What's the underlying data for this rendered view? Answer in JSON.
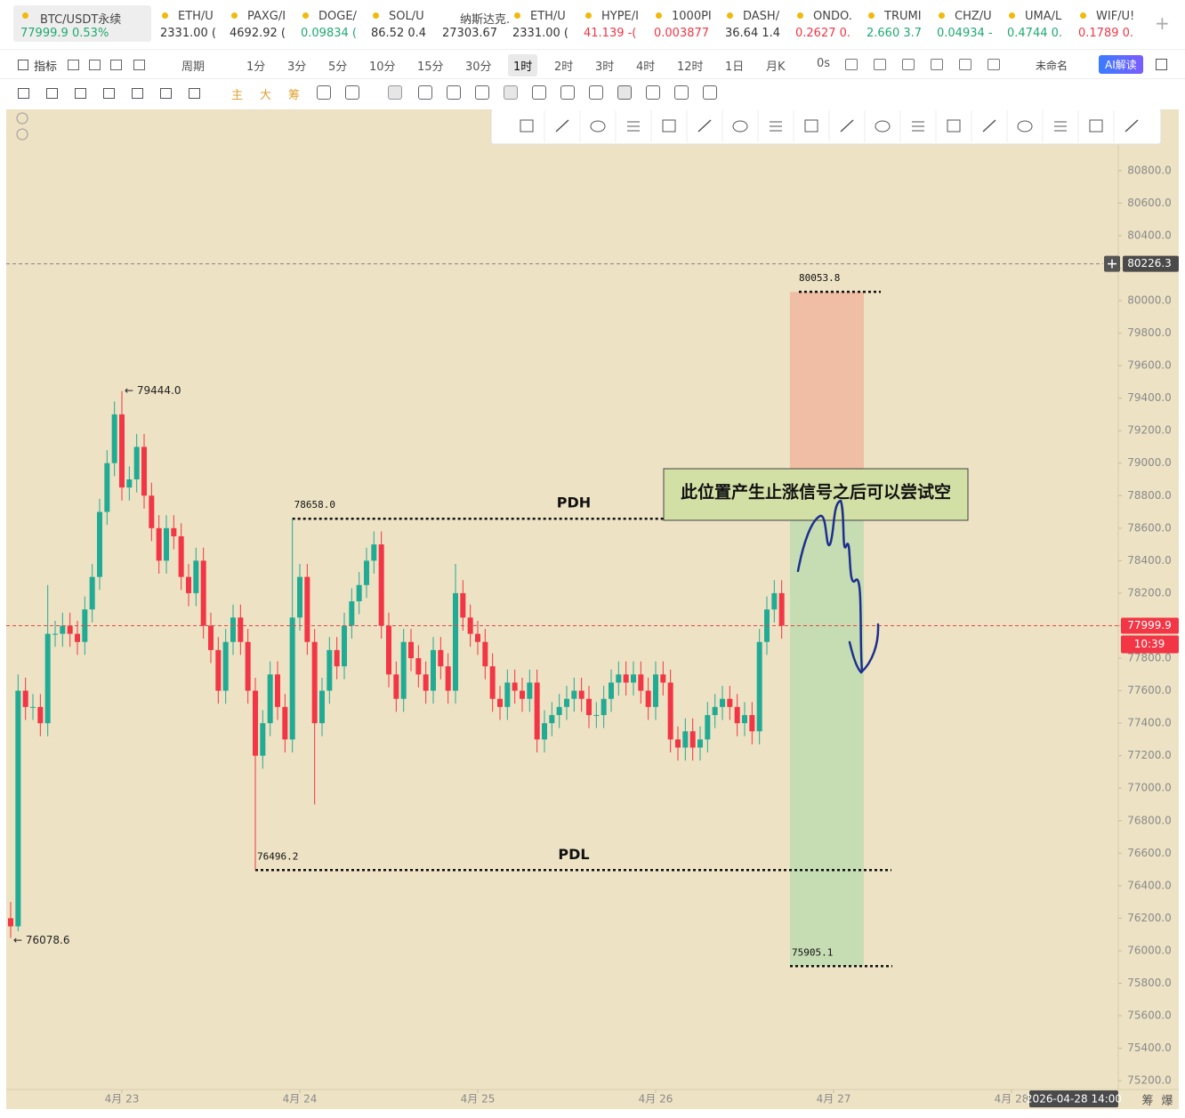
{
  "tickers": [
    {
      "symbol": "BTC/USDT永续",
      "price": "77999.9",
      "change": "0.53%",
      "color": "#1fa971"
    },
    {
      "symbol": "ETH/U",
      "quote": "2331.00 (",
      "color": "#333333"
    },
    {
      "symbol": "PAXG/I",
      "quote": "4692.92 (",
      "color": "#333333"
    },
    {
      "symbol": "DOGE/",
      "quote": "0.09834 (",
      "color": "#1fa971"
    },
    {
      "symbol": "SOL/U",
      "quote": "86.52 0.4",
      "color": "#333333"
    },
    {
      "symbol": "纳斯达克...",
      "quote": "27303.67",
      "color": "#333333"
    },
    {
      "symbol": "ETH/U",
      "quote": "2331.00 (",
      "color": "#333333"
    },
    {
      "symbol": "HYPE/I",
      "quote": "41.139 -(",
      "color": "#f23645"
    },
    {
      "symbol": "1000PI",
      "quote": "0.003877",
      "color": "#f23645"
    },
    {
      "symbol": "DASH/",
      "quote": "36.64 1.4",
      "color": "#333333"
    },
    {
      "symbol": "ONDO.",
      "quote": "0.2627 0.",
      "color": "#f23645"
    },
    {
      "symbol": "TRUMI",
      "quote": "2.660 3.7",
      "color": "#1fa971"
    },
    {
      "symbol": "CHZ/U",
      "quote": "0.04934 -",
      "color": "#1fa971"
    },
    {
      "symbol": "UMA/L",
      "quote": "0.4744 0.",
      "color": "#1fa971"
    },
    {
      "symbol": "WIF/U!",
      "quote": "0.1789 0.",
      "color": "#f23645"
    }
  ],
  "toolbar": {
    "indicators": "指标",
    "period": "周期",
    "intervals": [
      "1分",
      "3分",
      "5分",
      "10分",
      "15分",
      "30分",
      "1时",
      "2时",
      "3时",
      "4时",
      "12时",
      "1日",
      "月K"
    ],
    "timer": "0s",
    "layout_name": "未命名",
    "ai_button": "AI解读"
  },
  "drawing_bar": {
    "main": "主",
    "big": "大",
    "chips": "筹"
  },
  "chart_data": {
    "type": "candlestick",
    "open": [
      76200,
      76150,
      77600,
      77500,
      77500,
      77400,
      77950,
      77950,
      78000,
      77950,
      77900,
      78100,
      78300,
      78700,
      79000,
      79300,
      78850,
      78900,
      79100,
      78800,
      78600,
      78400,
      78600,
      78550,
      78300,
      78200,
      78400,
      78000,
      77850,
      77600,
      77900,
      78050,
      77900,
      77600,
      77200,
      77400,
      77700,
      77500,
      77300,
      78050,
      78300,
      77900,
      77400,
      77600,
      77850,
      77750,
      78000,
      78150,
      78250,
      78400,
      78500,
      78000,
      77700,
      77550,
      77900,
      77800,
      77700,
      77600,
      77850,
      77750,
      77600,
      78200,
      78050,
      77950,
      77900,
      77750,
      77550,
      77500,
      77650,
      77600,
      77550,
      77650,
      77300,
      77400,
      77450,
      77500,
      77550,
      77600,
      77550,
      77450,
      77450,
      77550,
      77650,
      77700,
      77650,
      77700,
      77600,
      77500,
      77700,
      77650,
      77300,
      77250,
      77350,
      77250,
      77300,
      77450,
      77500,
      77550,
      77500,
      77400,
      77450,
      77350,
      77900,
      78100,
      78200
    ],
    "high": [
      76300,
      77700,
      77680,
      77580,
      77580,
      78250,
      78030,
      78080,
      78080,
      78030,
      78180,
      78380,
      78780,
      79080,
      79380,
      79444.0,
      78980,
      79180,
      79180,
      78880,
      78680,
      78680,
      78680,
      78630,
      78380,
      78480,
      78480,
      78080,
      77930,
      77980,
      78130,
      78130,
      77980,
      77680,
      77480,
      77780,
      77780,
      77580,
      78658.0,
      78380,
      78380,
      77980,
      77680,
      77930,
      77930,
      78080,
      78230,
      78330,
      78480,
      78580,
      78580,
      78080,
      77780,
      77980,
      77980,
      77880,
      77780,
      77930,
      77930,
      77830,
      78380,
      78280,
      78130,
      78030,
      77980,
      77830,
      77630,
      77730,
      77730,
      77680,
      77730,
      77730,
      77480,
      77530,
      77580,
      77630,
      77680,
      77680,
      77630,
      77530,
      77630,
      77730,
      77780,
      77780,
      77780,
      77780,
      77680,
      77780,
      77780,
      77730,
      77380,
      77430,
      77430,
      77380,
      77530,
      77580,
      77630,
      77630,
      77580,
      77530,
      77530,
      77980,
      78180,
      78280,
      78280
    ],
    "low": [
      76078.6,
      76120,
      77420,
      77420,
      77320,
      77320,
      77870,
      77870,
      77870,
      77820,
      77820,
      78020,
      78220,
      78620,
      78920,
      78770,
      78770,
      78820,
      78720,
      78520,
      78320,
      78320,
      78470,
      78220,
      78120,
      78120,
      77920,
      77770,
      77520,
      77520,
      77820,
      77820,
      77520,
      76496.2,
      77120,
      77320,
      77420,
      77220,
      77220,
      77970,
      77820,
      76900,
      77320,
      77520,
      77670,
      77670,
      77920,
      78070,
      78170,
      78320,
      77920,
      77620,
      77470,
      77470,
      77720,
      77620,
      77520,
      77520,
      77670,
      77520,
      77520,
      77970,
      77870,
      77820,
      77670,
      77470,
      77420,
      77420,
      77520,
      77470,
      77470,
      77220,
      77220,
      77320,
      77370,
      77420,
      77470,
      77470,
      77370,
      77370,
      77370,
      77470,
      77570,
      77570,
      77570,
      77520,
      77420,
      77420,
      77570,
      77220,
      77170,
      77170,
      77170,
      77170,
      77220,
      77370,
      77420,
      77420,
      77320,
      77320,
      77270,
      77270,
      77820,
      78020,
      77920
    ],
    "close": [
      76150,
      77600,
      77500,
      77500,
      77400,
      77950,
      77950,
      78000,
      77950,
      77900,
      78100,
      78300,
      78700,
      79000,
      79300,
      78850,
      78900,
      79100,
      78800,
      78600,
      78400,
      78600,
      78550,
      78300,
      78200,
      78400,
      78000,
      77850,
      77600,
      77900,
      78050,
      77900,
      77600,
      77200,
      77400,
      77700,
      77500,
      77300,
      78050,
      78300,
      77900,
      77400,
      77600,
      77850,
      77750,
      78000,
      78150,
      78250,
      78400,
      78500,
      78000,
      77700,
      77550,
      77900,
      77800,
      77700,
      77600,
      77850,
      77750,
      77600,
      78200,
      78050,
      77950,
      77900,
      77750,
      77550,
      77500,
      77650,
      77600,
      77550,
      77650,
      77300,
      77400,
      77450,
      77500,
      77550,
      77600,
      77550,
      77450,
      77450,
      77550,
      77650,
      77700,
      77650,
      77700,
      77600,
      77500,
      77700,
      77650,
      77300,
      77250,
      77350,
      77250,
      77300,
      77450,
      77500,
      77550,
      77500,
      77400,
      77450,
      77350,
      77900,
      78100,
      78200,
      77999.9
    ],
    "up_color": "#22ab94",
    "down_color": "#f23645",
    "xlim": [
      -0.6,
      149.4
    ],
    "ylim": [
      75146,
      81176.5
    ],
    "xticks": [
      {
        "value": 15,
        "label": "4月 23"
      },
      {
        "value": 39,
        "label": "4月 24"
      },
      {
        "value": 63,
        "label": "4月 25"
      },
      {
        "value": 87,
        "label": "4月 26"
      },
      {
        "value": 111,
        "label": "4月 27"
      },
      {
        "value": 135,
        "label": "4月 28"
      }
    ],
    "yticks": [
      {
        "value": 75200,
        "label": "75200.0"
      },
      {
        "value": 75400,
        "label": "75400.0"
      },
      {
        "value": 75600,
        "label": "75600.0"
      },
      {
        "value": 75800,
        "label": "75800.0"
      },
      {
        "value": 76000,
        "label": "76000.0"
      },
      {
        "value": 76200,
        "label": "76200.0"
      },
      {
        "value": 76400,
        "label": "76400.0"
      },
      {
        "value": 76600,
        "label": "76600.0"
      },
      {
        "value": 76800,
        "label": "76800.0"
      },
      {
        "value": 77000,
        "label": "77000.0"
      },
      {
        "value": 77200,
        "label": "77200.0"
      },
      {
        "value": 77400,
        "label": "77400.0"
      },
      {
        "value": 77600,
        "label": "77600.0"
      },
      {
        "value": 77800,
        "label": "77800.0"
      },
      {
        "value": 78000,
        "label": "78000.0"
      },
      {
        "value": 78200,
        "label": "78200.0"
      },
      {
        "value": 78400,
        "label": "78400.0"
      },
      {
        "value": 78600,
        "label": "78600.0"
      },
      {
        "value": 78800,
        "label": "78800.0"
      },
      {
        "value": 79000,
        "label": "79000.0"
      },
      {
        "value": 79200,
        "label": "79200.0"
      },
      {
        "value": 79400,
        "label": "79400.0"
      },
      {
        "value": 79600,
        "label": "79600.0"
      },
      {
        "value": 79800,
        "label": "79800.0"
      },
      {
        "value": 80000,
        "label": "80000.0"
      },
      {
        "value": 80200,
        "label": "80200.0"
      },
      {
        "value": 80400,
        "label": "80400.0"
      },
      {
        "value": 80600,
        "label": "80600.0"
      },
      {
        "value": 80800,
        "label": "80800.0"
      }
    ],
    "high_marker": "← 79444.0",
    "low_marker": "← 76078.6",
    "levels": [
      {
        "name": "PDH",
        "value": 78658.0,
        "label": "78658.0"
      },
      {
        "name": "PDL",
        "value": 76496.2,
        "label": "76496.2"
      }
    ],
    "position": {
      "stop": {
        "value": 80053.8,
        "label": "80053.8"
      },
      "entry": 78658.0,
      "target": {
        "value": 75905.1,
        "label": "75905.1"
      }
    },
    "note": "此位置产生止涨信号之后可以尝试空",
    "last_price": {
      "value": 77999.9,
      "label": "77999.9"
    },
    "countdown": "10:39",
    "crosshair": {
      "value": 80226.3,
      "label": "80226.3"
    },
    "crosshair_time": "2026-04-28 14:00"
  },
  "footer": {
    "chips": "筹",
    "burst": "爆"
  }
}
